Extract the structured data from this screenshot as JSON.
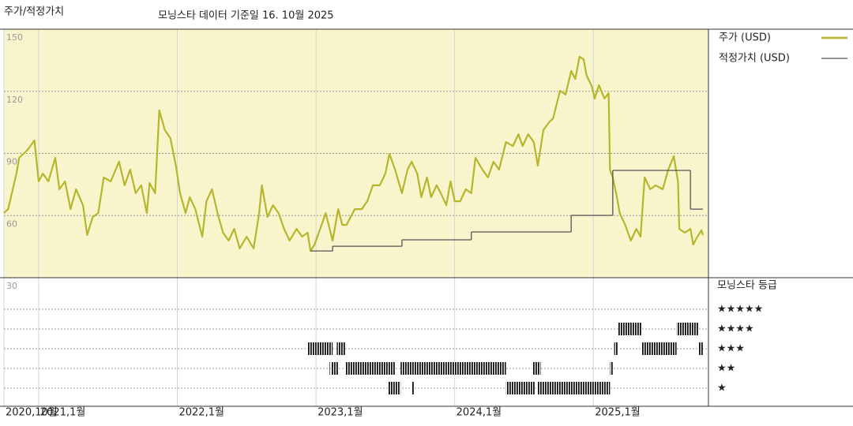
{
  "header": {
    "title": "주가/적정가치",
    "subtitle": "모닝스타 데이터 기준일 16. 10월 2025"
  },
  "chart_data": {
    "type": "line",
    "background": "#f8f5cc",
    "grid": true,
    "xlim": [
      2020.75,
      2025.83
    ],
    "xticks": [
      {
        "value": 2020.75,
        "label": "2020,10월"
      },
      {
        "value": 2021,
        "label": "2021,1월"
      },
      {
        "value": 2022,
        "label": "2022,1월"
      },
      {
        "value": 2023,
        "label": "2023,1월"
      },
      {
        "value": 2024,
        "label": "2024,1월"
      },
      {
        "value": 2025,
        "label": "2025,1월"
      }
    ],
    "ylim": [
      30,
      150
    ],
    "yticks": [
      30,
      60,
      90,
      120,
      150
    ],
    "series": [
      {
        "name": "주가 (USD)",
        "color": "#b5b52e",
        "x": [
          2020.75,
          2020.78,
          2020.84,
          2020.86,
          2020.92,
          2020.97,
          2021.0,
          2021.03,
          2021.07,
          2021.12,
          2021.15,
          2021.19,
          2021.23,
          2021.27,
          2021.32,
          2021.35,
          2021.39,
          2021.43,
          2021.47,
          2021.52,
          2021.58,
          2021.62,
          2021.66,
          2021.7,
          2021.74,
          2021.78,
          2021.8,
          2021.84,
          2021.87,
          2021.91,
          2021.95,
          2021.99,
          2022.02,
          2022.06,
          2022.09,
          2022.13,
          2022.18,
          2022.21,
          2022.25,
          2022.29,
          2022.33,
          2022.37,
          2022.41,
          2022.45,
          2022.5,
          2022.55,
          2022.59,
          2022.61,
          2022.65,
          2022.69,
          2022.73,
          2022.77,
          2022.81,
          2022.86,
          2022.9,
          2022.94,
          2022.96,
          2022.99,
          2023.03,
          2023.07,
          2023.12,
          2023.16,
          2023.19,
          2023.22,
          2023.28,
          2023.33,
          2023.37,
          2023.41,
          2023.46,
          2023.5,
          2023.53,
          2023.57,
          2023.62,
          2023.66,
          2023.69,
          2023.73,
          2023.76,
          2023.8,
          2023.83,
          2023.87,
          2023.9,
          2023.94,
          2023.97,
          2024.0,
          2024.04,
          2024.08,
          2024.12,
          2024.15,
          2024.2,
          2024.24,
          2024.28,
          2024.32,
          2024.37,
          2024.42,
          2024.46,
          2024.49,
          2024.53,
          2024.57,
          2024.6,
          2024.64,
          2024.68,
          2024.71,
          2024.76,
          2024.8,
          2024.84,
          2024.87,
          2024.9,
          2024.93,
          2024.95,
          2024.99,
          2025.01,
          2025.04,
          2025.08,
          2025.11,
          2025.12,
          2025.14,
          2025.17,
          2025.19,
          2025.23,
          2025.27,
          2025.31,
          2025.34,
          2025.37,
          2025.41,
          2025.45,
          2025.5,
          2025.54,
          2025.58,
          2025.61,
          2025.62,
          2025.66,
          2025.7,
          2025.72,
          2025.75,
          2025.78,
          2025.79
        ],
        "values": [
          61.2,
          63.1,
          80.3,
          87.9,
          91.7,
          96.3,
          76.5,
          80.3,
          76.5,
          87.9,
          72.7,
          76.5,
          63.1,
          72.7,
          65.0,
          50.6,
          59.3,
          61.2,
          78.4,
          76.5,
          86.0,
          74.6,
          82.2,
          70.8,
          74.6,
          61.2,
          75.7,
          70.8,
          110.8,
          101.3,
          97.4,
          84.1,
          70.8,
          61.2,
          68.9,
          63.1,
          49.8,
          66.9,
          72.7,
          61.2,
          51.7,
          47.9,
          53.6,
          44.1,
          49.8,
          44.1,
          61.2,
          74.6,
          59.3,
          65.0,
          61.2,
          53.6,
          47.9,
          53.6,
          49.8,
          51.7,
          42.9,
          46.0,
          53.6,
          61.2,
          47.9,
          63.1,
          55.5,
          55.5,
          63.1,
          63.1,
          66.9,
          74.6,
          74.6,
          80.3,
          89.8,
          82.2,
          70.8,
          82.2,
          86.0,
          80.3,
          68.9,
          78.4,
          68.9,
          74.6,
          70.8,
          65.0,
          76.5,
          66.9,
          66.9,
          72.7,
          70.8,
          87.9,
          82.2,
          78.4,
          86.0,
          82.2,
          95.5,
          93.6,
          99.3,
          93.6,
          99.3,
          95.5,
          84.1,
          101.3,
          105.0,
          106.9,
          120.3,
          118.4,
          129.8,
          126.0,
          136.7,
          135.5,
          127.9,
          122.2,
          116.5,
          123.0,
          116.5,
          119.1,
          82.2,
          78.4,
          68.9,
          61.2,
          55.5,
          47.9,
          53.6,
          49.8,
          78.4,
          72.7,
          74.6,
          72.7,
          82.2,
          88.7,
          76.5,
          53.6,
          51.7,
          53.6,
          46.0,
          49.8,
          52.9,
          50.6
        ]
      },
      {
        "name": "적정가치 (USD)",
        "color": "#555555",
        "step": true,
        "x": [
          2022.96,
          2023.12,
          2023.62,
          2024.12,
          2024.84,
          2025.14,
          2025.7,
          2025.79
        ],
        "values": [
          42.9,
          45.2,
          48.3,
          52.1,
          60.1,
          81.8,
          63.1,
          63.1
        ]
      }
    ],
    "ratings": {
      "title": "모닝스타 등급",
      "rows": [
        {
          "label": "★★★★★",
          "periods": []
        },
        {
          "label": "★★★★",
          "periods": [
            [
              2025.18,
              2025.35
            ],
            [
              2025.6,
              2025.76
            ]
          ]
        },
        {
          "label": "★★★",
          "periods": [
            [
              2022.94,
              2023.12
            ],
            [
              2023.15,
              2023.21
            ],
            [
              2025.15,
              2025.18
            ],
            [
              2025.35,
              2025.6
            ],
            [
              2025.76,
              2025.79
            ]
          ]
        },
        {
          "label": "★★",
          "periods": [
            [
              2023.09,
              2023.1
            ],
            [
              2023.11,
              2023.16
            ],
            [
              2023.21,
              2023.57
            ],
            [
              2023.61,
              2024.37
            ],
            [
              2024.56,
              2024.62
            ],
            [
              2025.12,
              2025.14
            ]
          ]
        },
        {
          "label": "★",
          "periods": [
            [
              2023.52,
              2023.61
            ],
            [
              2023.69,
              2023.71
            ],
            [
              2024.37,
              2024.58
            ],
            [
              2024.6,
              2025.12
            ]
          ]
        }
      ]
    }
  }
}
